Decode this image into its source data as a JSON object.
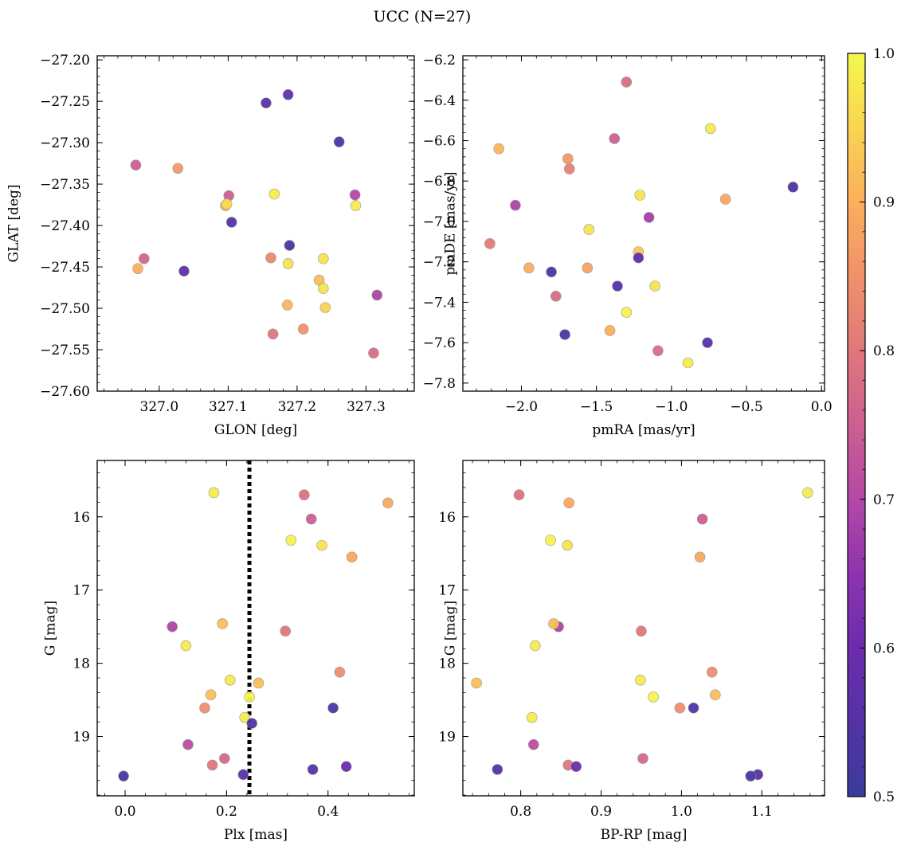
{
  "suptitle": "UCC (N=27)",
  "colorbar": {
    "colormap": "plasma",
    "range": [
      0.5,
      1.0
    ],
    "ticks": [
      0.5,
      0.6,
      0.7,
      0.8,
      0.9,
      1.0
    ],
    "tick_labels": [
      "0.5",
      "0.6",
      "0.7",
      "0.8",
      "0.9",
      "1.0"
    ]
  },
  "chart_data": [
    {
      "type": "scatter",
      "xlabel": "GLON [deg]",
      "ylabel": "GLAT [deg]",
      "xlim": [
        326.91,
        327.37
      ],
      "ylim": [
        -27.6,
        -27.195
      ],
      "xticks": [
        327.0,
        327.1,
        327.2,
        327.3
      ],
      "xtick_labels": [
        "327.0",
        "327.1",
        "327.2",
        "327.3"
      ],
      "yticks": [
        -27.2,
        -27.25,
        -27.3,
        -27.35,
        -27.4,
        -27.45,
        -27.5,
        -27.55,
        -27.6
      ],
      "ytick_labels": [
        "−27.20",
        "−27.25",
        "−27.30",
        "−27.35",
        "−27.40",
        "−27.45",
        "−27.50",
        "−27.55",
        "−27.60"
      ],
      "points": [
        {
          "x": 327.155,
          "y": -27.252,
          "c": 0.56
        },
        {
          "x": 327.187,
          "y": -27.242,
          "c": 0.57
        },
        {
          "x": 327.261,
          "y": -27.299,
          "c": 0.54
        },
        {
          "x": 326.966,
          "y": -27.327,
          "c": 0.75
        },
        {
          "x": 327.027,
          "y": -27.331,
          "c": 0.86
        },
        {
          "x": 327.101,
          "y": -27.364,
          "c": 0.75
        },
        {
          "x": 327.096,
          "y": -27.376,
          "c": 0.9
        },
        {
          "x": 327.098,
          "y": -27.374,
          "c": 0.96
        },
        {
          "x": 327.167,
          "y": -27.362,
          "c": 0.98
        },
        {
          "x": 327.284,
          "y": -27.363,
          "c": 0.7
        },
        {
          "x": 327.285,
          "y": -27.376,
          "c": 0.98
        },
        {
          "x": 327.105,
          "y": -27.396,
          "c": 0.55
        },
        {
          "x": 327.189,
          "y": -27.424,
          "c": 0.53
        },
        {
          "x": 326.978,
          "y": -27.44,
          "c": 0.76
        },
        {
          "x": 326.969,
          "y": -27.452,
          "c": 0.9
        },
        {
          "x": 327.036,
          "y": -27.455,
          "c": 0.57
        },
        {
          "x": 327.162,
          "y": -27.439,
          "c": 0.83
        },
        {
          "x": 327.187,
          "y": -27.446,
          "c": 0.97
        },
        {
          "x": 327.238,
          "y": -27.44,
          "c": 0.97
        },
        {
          "x": 327.232,
          "y": -27.466,
          "c": 0.92
        },
        {
          "x": 327.238,
          "y": -27.476,
          "c": 0.97
        },
        {
          "x": 327.316,
          "y": -27.484,
          "c": 0.69
        },
        {
          "x": 327.186,
          "y": -27.496,
          "c": 0.91
        },
        {
          "x": 327.241,
          "y": -27.499,
          "c": 0.95
        },
        {
          "x": 327.209,
          "y": -27.525,
          "c": 0.85
        },
        {
          "x": 327.165,
          "y": -27.531,
          "c": 0.8
        },
        {
          "x": 327.311,
          "y": -27.554,
          "c": 0.78
        }
      ]
    },
    {
      "type": "scatter",
      "xlabel": "pmRA [mas/yr]",
      "ylabel": "pmDE [mas/yr]",
      "xlim": [
        -2.39,
        0.02
      ],
      "ylim": [
        -7.84,
        -6.18
      ],
      "xticks": [
        -2.0,
        -1.5,
        -1.0,
        -0.5,
        0.0
      ],
      "xtick_labels": [
        "−2.0",
        "−1.5",
        "−1.0",
        "−0.5",
        "0.0"
      ],
      "yticks": [
        -6.2,
        -6.4,
        -6.6,
        -6.8,
        -7.0,
        -7.2,
        -7.4,
        -7.6,
        -7.8
      ],
      "ytick_labels": [
        "−6.2",
        "−6.4",
        "−6.6",
        "−6.8",
        "−7.0",
        "−7.2",
        "−7.4",
        "−7.6",
        "−7.8"
      ],
      "points": [
        {
          "x": -1.3,
          "y": -6.31,
          "c": 0.78
        },
        {
          "x": -0.74,
          "y": -6.54,
          "c": 0.98
        },
        {
          "x": -1.38,
          "y": -6.59,
          "c": 0.75
        },
        {
          "x": -2.15,
          "y": -6.64,
          "c": 0.91
        },
        {
          "x": -1.69,
          "y": -6.69,
          "c": 0.86
        },
        {
          "x": -1.68,
          "y": -6.74,
          "c": 0.82
        },
        {
          "x": -0.19,
          "y": -6.83,
          "c": 0.54
        },
        {
          "x": -1.21,
          "y": -6.87,
          "c": 0.97
        },
        {
          "x": -0.64,
          "y": -6.89,
          "c": 0.89
        },
        {
          "x": -2.04,
          "y": -6.92,
          "c": 0.69
        },
        {
          "x": -1.15,
          "y": -6.98,
          "c": 0.68
        },
        {
          "x": -1.55,
          "y": -7.04,
          "c": 0.97
        },
        {
          "x": -2.21,
          "y": -7.11,
          "c": 0.81
        },
        {
          "x": -1.22,
          "y": -7.15,
          "c": 0.93
        },
        {
          "x": -1.22,
          "y": -7.18,
          "c": 0.57
        },
        {
          "x": -1.95,
          "y": -7.23,
          "c": 0.9
        },
        {
          "x": -1.56,
          "y": -7.23,
          "c": 0.88
        },
        {
          "x": -1.8,
          "y": -7.25,
          "c": 0.54
        },
        {
          "x": -1.36,
          "y": -7.32,
          "c": 0.55
        },
        {
          "x": -1.11,
          "y": -7.32,
          "c": 0.97
        },
        {
          "x": -1.77,
          "y": -7.37,
          "c": 0.78
        },
        {
          "x": -1.3,
          "y": -7.45,
          "c": 0.99
        },
        {
          "x": -1.41,
          "y": -7.54,
          "c": 0.9
        },
        {
          "x": -1.71,
          "y": -7.56,
          "c": 0.53
        },
        {
          "x": -0.76,
          "y": -7.6,
          "c": 0.56
        },
        {
          "x": -1.09,
          "y": -7.64,
          "c": 0.78
        },
        {
          "x": -0.89,
          "y": -7.7,
          "c": 0.98
        }
      ]
    },
    {
      "type": "scatter",
      "xlabel": "Plx [mas]",
      "ylabel": "G [mag]",
      "xlim": [
        -0.055,
        0.57
      ],
      "ylim": [
        19.81,
        15.23
      ],
      "xticks": [
        0.0,
        0.2,
        0.4
      ],
      "xtick_labels": [
        "0.0",
        "0.2",
        "0.4"
      ],
      "yticks": [
        16,
        17,
        18,
        19
      ],
      "ytick_labels": [
        "16",
        "17",
        "18",
        "19"
      ],
      "vline": {
        "x": 0.245,
        "style": "dotted"
      },
      "points": [
        {
          "x": 0.175,
          "y": 15.67,
          "c": 0.98
        },
        {
          "x": 0.353,
          "y": 15.7,
          "c": 0.79
        },
        {
          "x": 0.518,
          "y": 15.81,
          "c": 0.89
        },
        {
          "x": 0.367,
          "y": 16.03,
          "c": 0.75
        },
        {
          "x": 0.327,
          "y": 16.32,
          "c": 0.99
        },
        {
          "x": 0.388,
          "y": 16.39,
          "c": 0.97
        },
        {
          "x": 0.447,
          "y": 16.55,
          "c": 0.89
        },
        {
          "x": 0.093,
          "y": 17.5,
          "c": 0.69
        },
        {
          "x": 0.192,
          "y": 17.46,
          "c": 0.92
        },
        {
          "x": 0.316,
          "y": 17.56,
          "c": 0.8
        },
        {
          "x": 0.12,
          "y": 17.76,
          "c": 0.98
        },
        {
          "x": 0.423,
          "y": 18.12,
          "c": 0.84
        },
        {
          "x": 0.207,
          "y": 18.23,
          "c": 0.98
        },
        {
          "x": 0.263,
          "y": 18.27,
          "c": 0.92
        },
        {
          "x": 0.169,
          "y": 18.43,
          "c": 0.92
        },
        {
          "x": 0.245,
          "y": 18.46,
          "c": 0.99
        },
        {
          "x": 0.157,
          "y": 18.61,
          "c": 0.84
        },
        {
          "x": 0.41,
          "y": 18.61,
          "c": 0.54
        },
        {
          "x": 0.236,
          "y": 18.74,
          "c": 0.98
        },
        {
          "x": 0.25,
          "y": 18.82,
          "c": 0.55
        },
        {
          "x": 0.124,
          "y": 19.11,
          "c": 0.71
        },
        {
          "x": 0.196,
          "y": 19.3,
          "c": 0.77
        },
        {
          "x": 0.172,
          "y": 19.39,
          "c": 0.8
        },
        {
          "x": 0.436,
          "y": 19.41,
          "c": 0.6
        },
        {
          "x": 0.37,
          "y": 19.45,
          "c": 0.55
        },
        {
          "x": 0.233,
          "y": 19.52,
          "c": 0.56
        },
        {
          "x": -0.003,
          "y": 19.54,
          "c": 0.53
        }
      ]
    },
    {
      "type": "scatter",
      "xlabel": "BP-RP [mag]",
      "ylabel": "G [mag]",
      "xlim": [
        0.728,
        1.178
      ],
      "ylim": [
        19.81,
        15.23
      ],
      "xticks": [
        0.8,
        0.9,
        1.0,
        1.1
      ],
      "xtick_labels": [
        "0.8",
        "0.9",
        "1.0",
        "1.1"
      ],
      "yticks": [
        16,
        17,
        18,
        19
      ],
      "ytick_labels": [
        "16",
        "17",
        "18",
        "19"
      ],
      "points": [
        {
          "x": 1.157,
          "y": 15.67,
          "c": 0.98
        },
        {
          "x": 0.798,
          "y": 15.7,
          "c": 0.79
        },
        {
          "x": 0.86,
          "y": 15.81,
          "c": 0.89
        },
        {
          "x": 1.026,
          "y": 16.03,
          "c": 0.75
        },
        {
          "x": 0.837,
          "y": 16.32,
          "c": 0.99
        },
        {
          "x": 0.858,
          "y": 16.39,
          "c": 0.97
        },
        {
          "x": 1.023,
          "y": 16.55,
          "c": 0.89
        },
        {
          "x": 0.847,
          "y": 17.5,
          "c": 0.69
        },
        {
          "x": 0.841,
          "y": 17.46,
          "c": 0.92
        },
        {
          "x": 0.95,
          "y": 17.56,
          "c": 0.8
        },
        {
          "x": 0.818,
          "y": 17.76,
          "c": 0.98
        },
        {
          "x": 1.038,
          "y": 18.12,
          "c": 0.84
        },
        {
          "x": 0.949,
          "y": 18.23,
          "c": 0.98
        },
        {
          "x": 0.745,
          "y": 18.27,
          "c": 0.92
        },
        {
          "x": 1.042,
          "y": 18.43,
          "c": 0.92
        },
        {
          "x": 0.965,
          "y": 18.46,
          "c": 0.99
        },
        {
          "x": 0.998,
          "y": 18.61,
          "c": 0.84
        },
        {
          "x": 1.015,
          "y": 18.61,
          "c": 0.54
        },
        {
          "x": 0.814,
          "y": 18.74,
          "c": 0.98
        },
        {
          "x": 0.816,
          "y": 19.11,
          "c": 0.71
        },
        {
          "x": 0.952,
          "y": 19.3,
          "c": 0.77
        },
        {
          "x": 0.859,
          "y": 19.39,
          "c": 0.8
        },
        {
          "x": 0.869,
          "y": 19.41,
          "c": 0.6
        },
        {
          "x": 0.771,
          "y": 19.45,
          "c": 0.55
        },
        {
          "x": 1.095,
          "y": 19.52,
          "c": 0.56
        },
        {
          "x": 1.086,
          "y": 19.54,
          "c": 0.53
        }
      ]
    }
  ]
}
